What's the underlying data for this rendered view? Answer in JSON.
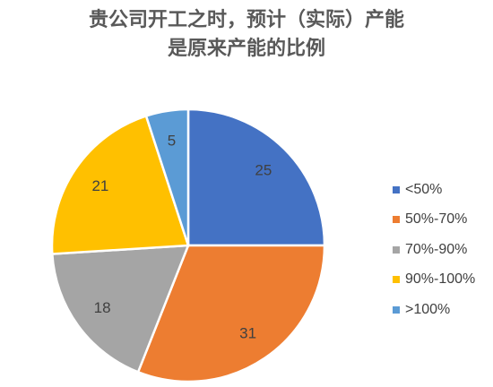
{
  "chart_data": {
    "type": "pie",
    "title_lines": [
      "贵公司开工之时，预计（实际）产能",
      "是原来产能的比例"
    ],
    "categories": [
      "<50%",
      "50%-70%",
      "70%-90%",
      "90%-100%",
      ">100%"
    ],
    "values": [
      25,
      31,
      18,
      21,
      5
    ],
    "colors": [
      "#4472C4",
      "#ED7D31",
      "#A5A5A5",
      "#FFC000",
      "#5B9BD5"
    ],
    "legend_position": "right"
  }
}
